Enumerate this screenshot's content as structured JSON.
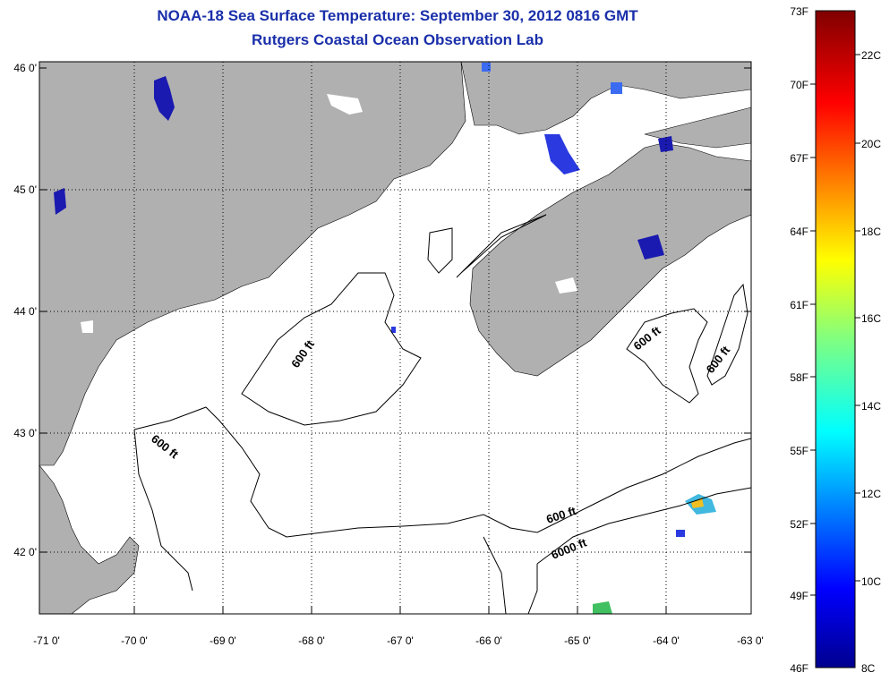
{
  "header": {
    "title_line1": "NOAA-18 Sea Surface Temperature:  September 30, 2012 0816 GMT",
    "title_line2": "Rutgers Coastal Ocean Observation Lab"
  },
  "map": {
    "lat_labels": [
      "46 0'",
      "45 0'",
      "44 0'",
      "43 0'",
      "42 0'"
    ],
    "lon_labels": [
      "-71 0'",
      "-70 0'",
      "-69 0'",
      "-68 0'",
      "-67 0'",
      "-66 0'",
      "-65 0'",
      "-64 0'",
      "-63 0'"
    ],
    "lat_range": [
      41.5,
      46.0
    ],
    "lon_range": [
      -71.0,
      -63.0
    ],
    "land_color": "#b0b0b0",
    "contour_labels": [
      "600 ft",
      "600 ft",
      "600 ft",
      "600 ft",
      "600 ft",
      "6000 ft"
    ]
  },
  "colorbar": {
    "fahrenheit_labels": [
      "73F",
      "70F",
      "67F",
      "64F",
      "61F",
      "58F",
      "55F",
      "52F",
      "49F",
      "46F"
    ],
    "celsius_labels": [
      "22C",
      "20C",
      "18C",
      "16C",
      "14C",
      "12C",
      "10C",
      "8C"
    ],
    "range_f": [
      46,
      73
    ]
  }
}
